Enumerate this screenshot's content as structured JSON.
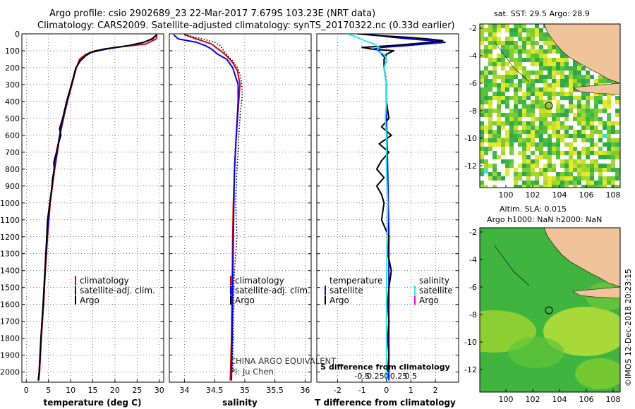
{
  "header": {
    "title_line1": "Argo profile: csio 2902689_23 22-Mar-2017 7.679S 103.23E (NRT data)",
    "title_line2": "Climatology: CARS2009. Satellite-adjusted climatology: synTS_20170322.nc (0.33d earlier)"
  },
  "depth_ticks": [
    0,
    100,
    200,
    300,
    400,
    500,
    600,
    700,
    800,
    900,
    1000,
    1100,
    1200,
    1300,
    1400,
    1500,
    1600,
    1700,
    1800,
    1900,
    2000
  ],
  "chart_data": [
    {
      "type": "line",
      "name": "temperature profile",
      "xlabel": "temperature (deg C)",
      "xlim": [
        -1,
        31
      ],
      "ylim": [
        2060,
        0
      ],
      "xticks": [
        0,
        5,
        10,
        15,
        20,
        25,
        30
      ],
      "legend": [
        "climatology",
        "satellite-adj. clim.",
        "Argo"
      ],
      "series": [
        {
          "name": "climatology",
          "color": "#e00000",
          "depth": [
            5,
            30,
            60,
            80,
            100,
            120,
            150,
            200,
            300,
            400,
            500,
            600,
            700,
            800,
            1000,
            1200,
            1400,
            1600,
            1800,
            2000,
            2050
          ],
          "values": [
            29.5,
            29.3,
            27.0,
            20.0,
            15.5,
            13.5,
            12.0,
            11.3,
            10.3,
            9.3,
            8.4,
            7.6,
            7.0,
            6.4,
            5.4,
            4.8,
            4.3,
            3.9,
            3.4,
            3.0,
            2.8
          ]
        },
        {
          "name": "satellite-adj. clim.",
          "color": "#0000ff",
          "depth": [
            5,
            30,
            50,
            70,
            90,
            110,
            130,
            160,
            200,
            300,
            400,
            500,
            600,
            700,
            800,
            1000,
            1200,
            1400,
            1600,
            1800,
            2000,
            2050
          ],
          "values": [
            29.4,
            28.5,
            26.5,
            23.0,
            18.0,
            14.6,
            13.4,
            12.2,
            11.2,
            10.2,
            9.2,
            8.3,
            7.5,
            6.9,
            6.3,
            5.3,
            4.7,
            4.2,
            3.8,
            3.3,
            2.9,
            2.7
          ]
        },
        {
          "name": "Argo",
          "color": "#000000",
          "depth": [
            5,
            30,
            50,
            70,
            90,
            110,
            130,
            160,
            200,
            300,
            400,
            500,
            560,
            600,
            650,
            700,
            760,
            800,
            860,
            900,
            1000,
            1100,
            1200,
            1400,
            1600,
            1800,
            2000,
            2050
          ],
          "values": [
            29.4,
            28.3,
            26.5,
            23.0,
            17.5,
            14.4,
            13.3,
            12.1,
            11.2,
            10.2,
            9.1,
            8.2,
            7.5,
            7.8,
            7.2,
            6.8,
            6.2,
            6.3,
            5.9,
            5.8,
            5.3,
            4.8,
            4.6,
            4.2,
            3.8,
            3.3,
            2.9,
            2.7
          ]
        }
      ]
    },
    {
      "type": "line",
      "name": "salinity profile",
      "xlabel": "salinity",
      "xlim": [
        33.75,
        36.1
      ],
      "ylim": [
        2060,
        0
      ],
      "xticks": [
        34,
        34.5,
        35,
        35.5,
        36
      ],
      "xtick_labels": [
        "34",
        "34.5",
        "35",
        "35.5",
        "36"
      ],
      "legend": [
        "climatology",
        "satellite-adj. clim.",
        "Argo"
      ],
      "annotations": [
        "CHINA ARGO EQUIVALENT",
        "PI: Ju Chen"
      ],
      "series": [
        {
          "name": "climatology",
          "color": "#e00000",
          "depth": [
            5,
            30,
            60,
            80,
            100,
            130,
            170,
            220,
            300,
            400,
            600,
            800,
            1000,
            1200,
            1500,
            1800,
            2050
          ],
          "values": [
            34.0,
            34.2,
            34.45,
            34.52,
            34.6,
            34.7,
            34.8,
            34.88,
            34.92,
            34.9,
            34.86,
            34.83,
            34.81,
            34.8,
            34.79,
            34.78,
            34.76
          ]
        },
        {
          "name": "satellite-adj. clim.",
          "color": "#0000ff",
          "depth": [
            5,
            30,
            50,
            70,
            90,
            120,
            150,
            200,
            300,
            400,
            600,
            800,
            1000,
            1200,
            1500,
            1800,
            2050
          ],
          "values": [
            33.82,
            33.9,
            34.2,
            34.35,
            34.45,
            34.55,
            34.7,
            34.8,
            34.89,
            34.89,
            34.86,
            34.83,
            34.82,
            34.81,
            34.8,
            34.79,
            34.78
          ]
        },
        {
          "name": "Argo",
          "color": "#000000",
          "dotted": true,
          "depth": [
            5,
            30,
            50,
            70,
            100,
            130,
            160,
            200,
            250,
            300,
            350,
            400,
            450,
            500,
            600,
            700,
            800,
            900,
            1000,
            1100,
            1200,
            1300,
            1400,
            1500,
            1600,
            1700,
            1800,
            1900,
            2000
          ],
          "values": [
            34.0,
            34.3,
            34.5,
            34.6,
            34.65,
            34.72,
            34.8,
            34.88,
            34.93,
            34.95,
            34.96,
            34.95,
            34.93,
            34.92,
            34.9,
            34.89,
            34.87,
            34.86,
            34.85,
            34.86,
            34.87,
            34.85,
            34.83,
            34.82,
            34.82,
            34.81,
            34.81,
            34.8,
            34.8
          ]
        }
      ]
    },
    {
      "type": "line",
      "name": "difference from climatology",
      "xlabel": "T difference from climatology",
      "xlabel_top": "S difference from climatology",
      "xlim": [
        -2.85,
        2.95
      ],
      "ylim": [
        2060,
        0
      ],
      "xticks": [
        -2,
        -1,
        0,
        1,
        2
      ],
      "top_ticks": [
        -0.5,
        -0.25,
        0,
        0.25,
        0.5
      ],
      "top_tick_labels": [
        "-0.5",
        "-0.25",
        "0",
        "0.25",
        "0.5"
      ],
      "legend_left_heading": "temperature",
      "legend_right_heading": "salinity",
      "legend_left": [
        "satellite",
        "Argo"
      ],
      "legend_right": [
        "satellite",
        "Argo"
      ],
      "series": [
        {
          "name": "temperature satellite",
          "color": "#0000ff",
          "depth": [
            0,
            10,
            20,
            30,
            40,
            50,
            60,
            70,
            80,
            90,
            100,
            120,
            150,
            200,
            300,
            500,
            800,
            1200,
            1600,
            2050
          ],
          "values": [
            -1.0,
            -0.3,
            0.2,
            1.0,
            1.8,
            2.4,
            1.6,
            0.8,
            -0.2,
            -0.5,
            -0.3,
            -0.2,
            0.0,
            -0.1,
            0.0,
            0.0,
            0.05,
            0.1,
            0.1,
            0.1
          ]
        },
        {
          "name": "temperature Argo",
          "color": "#000000",
          "depth": [
            0,
            10,
            20,
            30,
            40,
            50,
            60,
            70,
            80,
            90,
            100,
            120,
            150,
            200,
            300,
            400,
            500,
            550,
            600,
            650,
            700,
            750,
            800,
            850,
            900,
            950,
            1000,
            1100,
            1200,
            1300,
            1400,
            1500,
            1600,
            1700,
            1800,
            1900,
            2000
          ],
          "values": [
            -1.2,
            -0.4,
            0.8,
            1.7,
            2.3,
            1.8,
            1.0,
            0.2,
            -1.0,
            -0.6,
            0.3,
            0.0,
            -0.1,
            -0.1,
            0.0,
            0.0,
            0.1,
            -0.2,
            0.2,
            -0.3,
            0.1,
            -0.2,
            -0.4,
            -0.1,
            -0.4,
            -0.2,
            -0.1,
            -0.2,
            0.1,
            0.05,
            0.2,
            0.1,
            0.05,
            0.1,
            0.05,
            0.1,
            0.05
          ]
        },
        {
          "name": "salinity satellite",
          "color": "#22e8f0",
          "depth": [
            0,
            20,
            40,
            60,
            80,
            100,
            120,
            150,
            200,
            300,
            400,
            500,
            600,
            800,
            1000,
            1500,
            2000,
            2050
          ],
          "values": [
            -1.6,
            -1.2,
            -0.9,
            -0.5,
            -0.3,
            -0.4,
            -0.1,
            0.0,
            -0.1,
            0.0,
            0.0,
            -0.05,
            0.0,
            0.0,
            0.05,
            0.0,
            0.0,
            0.0
          ]
        },
        {
          "name": "salinity Argo",
          "color": "#ff00ff",
          "depth": [],
          "values": []
        }
      ]
    }
  ],
  "maps": {
    "sst": {
      "title": "sat. SST: 29.5 Argo: 28.9",
      "xticks": [
        "100",
        "102",
        "104",
        "106",
        "108"
      ],
      "yticks": [
        "-2",
        "-4",
        "-6",
        "-8",
        "-10",
        "-12"
      ]
    },
    "sla": {
      "title": "Altim. SLA: 0.015",
      "subtitle": "Argo h1000: NaN h2000: NaN",
      "xticks": [
        "100",
        "102",
        "104",
        "106",
        "108"
      ],
      "yticks": [
        "-2",
        "-4",
        "-6",
        "-8",
        "-10",
        "-12"
      ]
    }
  },
  "credit": "©IMOS 12-Dec-2018 20:23:15"
}
